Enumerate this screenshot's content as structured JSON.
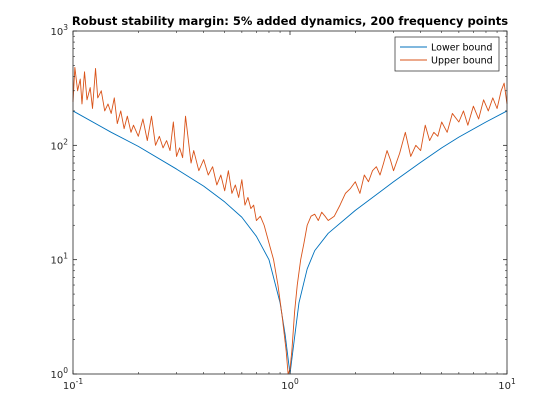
{
  "chart_data": {
    "type": "line",
    "title": "Robust stability margin: 5% added dynamics, 200 frequency points",
    "xlabel": "",
    "ylabel": "",
    "xscale": "log",
    "yscale": "log",
    "xlim": [
      0.1,
      10
    ],
    "ylim": [
      1,
      1000
    ],
    "grid": false,
    "legend_position": "top-right",
    "x_ticks": [
      {
        "value": 0.1,
        "base": "10",
        "exp": "-1"
      },
      {
        "value": 1,
        "base": "10",
        "exp": "0"
      },
      {
        "value": 10,
        "base": "10",
        "exp": "1"
      }
    ],
    "y_ticks": [
      {
        "value": 1,
        "base": "10",
        "exp": "0"
      },
      {
        "value": 10,
        "base": "10",
        "exp": "1"
      },
      {
        "value": 100,
        "base": "10",
        "exp": "2"
      },
      {
        "value": 1000,
        "base": "10",
        "exp": "3"
      }
    ],
    "series": [
      {
        "name": "Lower bound",
        "color": "#0072bd",
        "x": [
          0.1,
          0.15,
          0.2,
          0.3,
          0.4,
          0.5,
          0.6,
          0.7,
          0.8,
          0.9,
          0.95,
          1.0,
          1.05,
          1.1,
          1.2,
          1.3,
          1.5,
          2,
          3,
          4,
          5,
          6,
          8,
          10
        ],
        "y": [
          200,
          130,
          98,
          62,
          44,
          32,
          23.5,
          16,
          10,
          4.2,
          2.2,
          1.0,
          2.1,
          4.2,
          8.3,
          12,
          17,
          27,
          48,
          71,
          95,
          118,
          160,
          200
        ]
      },
      {
        "name": "Upper bound",
        "color": "#d95319",
        "x": [
          0.1,
          0.102,
          0.105,
          0.108,
          0.11,
          0.113,
          0.116,
          0.12,
          0.123,
          0.127,
          0.13,
          0.135,
          0.14,
          0.145,
          0.15,
          0.155,
          0.16,
          0.166,
          0.172,
          0.178,
          0.185,
          0.19,
          0.2,
          0.21,
          0.22,
          0.23,
          0.24,
          0.25,
          0.26,
          0.27,
          0.28,
          0.29,
          0.3,
          0.31,
          0.32,
          0.33,
          0.35,
          0.36,
          0.38,
          0.4,
          0.42,
          0.44,
          0.46,
          0.48,
          0.5,
          0.52,
          0.54,
          0.56,
          0.58,
          0.6,
          0.62,
          0.64,
          0.66,
          0.68,
          0.7,
          0.73,
          0.76,
          0.8,
          0.84,
          0.88,
          0.92,
          0.96,
          0.98,
          1.0,
          1.02,
          1.05,
          1.08,
          1.12,
          1.16,
          1.2,
          1.25,
          1.3,
          1.35,
          1.4,
          1.45,
          1.5,
          1.6,
          1.7,
          1.8,
          1.9,
          2.0,
          2.1,
          2.2,
          2.3,
          2.4,
          2.5,
          2.6,
          2.7,
          2.8,
          2.9,
          3.0,
          3.2,
          3.4,
          3.6,
          3.8,
          4.0,
          4.2,
          4.4,
          4.6,
          4.8,
          5.0,
          5.3,
          5.6,
          6.0,
          6.3,
          6.6,
          7.0,
          7.4,
          7.8,
          8.2,
          8.6,
          9.0,
          9.4,
          9.7,
          10.0
        ],
        "y": [
          240,
          480,
          300,
          380,
          230,
          440,
          250,
          320,
          210,
          470,
          260,
          300,
          200,
          230,
          190,
          260,
          155,
          200,
          140,
          180,
          130,
          150,
          120,
          170,
          110,
          180,
          100,
          120,
          95,
          110,
          90,
          160,
          80,
          95,
          78,
          180,
          70,
          90,
          60,
          75,
          55,
          65,
          45,
          55,
          40,
          60,
          38,
          45,
          35,
          50,
          30,
          35,
          28,
          30,
          22,
          24,
          20,
          14,
          10,
          6,
          3.2,
          1.6,
          1.0,
          1.1,
          1.6,
          3.5,
          6.0,
          10,
          14,
          20,
          24,
          25,
          22,
          26,
          24,
          22,
          24,
          30,
          38,
          42,
          48,
          38,
          55,
          48,
          60,
          65,
          55,
          70,
          90,
          75,
          60,
          85,
          130,
          80,
          100,
          90,
          150,
          110,
          130,
          120,
          160,
          130,
          190,
          160,
          200,
          150,
          220,
          170,
          250,
          200,
          260,
          210,
          300,
          350,
          230
        ]
      }
    ]
  }
}
